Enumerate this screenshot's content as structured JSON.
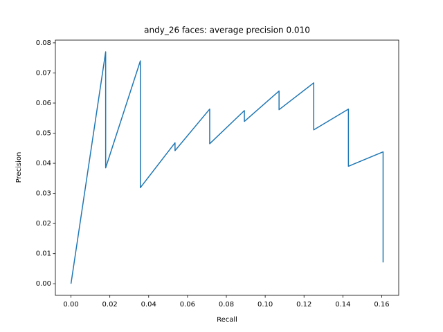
{
  "chart_data": {
    "type": "line",
    "title": "andy_26 faces: average precision 0.010",
    "x_label": "Recall",
    "y_label": "Precision",
    "x": [
      0,
      0.017857,
      0.017857,
      0.035714,
      0.035714,
      0.053571,
      0.053571,
      0.071429,
      0.071429,
      0.089286,
      0.089286,
      0.107143,
      0.107143,
      0.125,
      0.125,
      0.142857,
      0.142857,
      0.160714,
      0.160714
    ],
    "values": [
      0,
      0.077,
      0.0385,
      0.074,
      0.0319,
      0.0468,
      0.0442,
      0.058,
      0.0465,
      0.0575,
      0.0539,
      0.064,
      0.0578,
      0.0667,
      0.0511,
      0.058,
      0.039,
      0.0438,
      0.0071
    ],
    "color": "#1f77b4",
    "xlim": [
      -0.00804,
      0.16875
    ],
    "ylim": [
      -0.00385,
      0.0809
    ],
    "xticks": [
      {
        "value": 0,
        "label": "0.00"
      },
      {
        "value": 0.02,
        "label": "0.02"
      },
      {
        "value": 0.04,
        "label": "0.04"
      },
      {
        "value": 0.06,
        "label": "0.06"
      },
      {
        "value": 0.08,
        "label": "0.08"
      },
      {
        "value": 0.1,
        "label": "0.10"
      },
      {
        "value": 0.12,
        "label": "0.12"
      },
      {
        "value": 0.14,
        "label": "0.14"
      },
      {
        "value": 0.16,
        "label": "0.16"
      }
    ],
    "yticks": [
      {
        "value": 0,
        "label": "0.00"
      },
      {
        "value": 0.01,
        "label": "0.01"
      },
      {
        "value": 0.02,
        "label": "0.02"
      },
      {
        "value": 0.03,
        "label": "0.03"
      },
      {
        "value": 0.04,
        "label": "0.04"
      },
      {
        "value": 0.05,
        "label": "0.05"
      },
      {
        "value": 0.06,
        "label": "0.06"
      },
      {
        "value": 0.07,
        "label": "0.07"
      },
      {
        "value": 0.08,
        "label": "0.08"
      }
    ],
    "grid": false
  }
}
